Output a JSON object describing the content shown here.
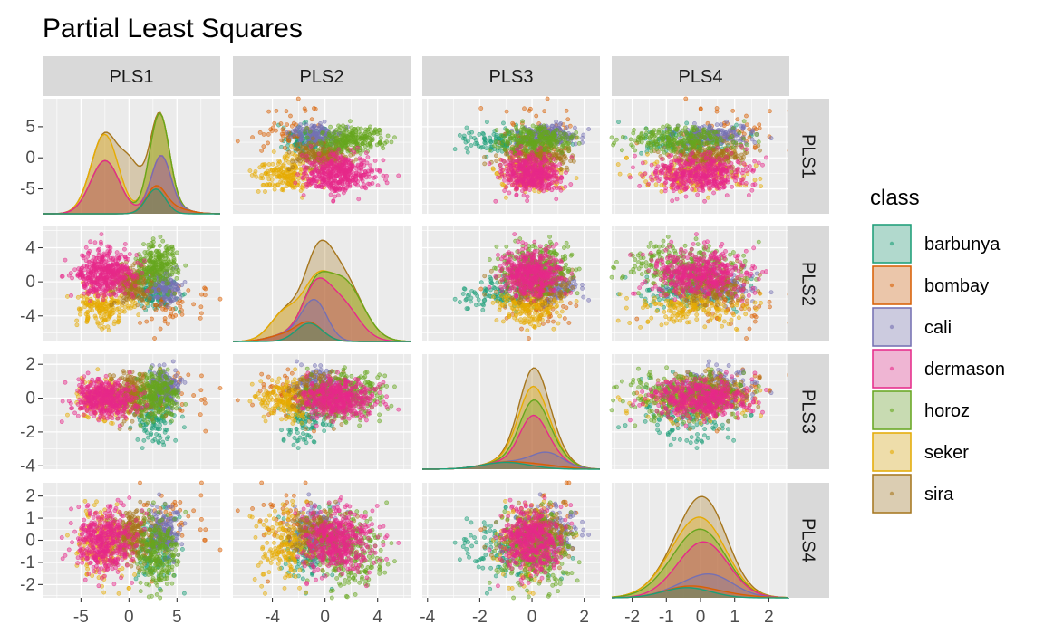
{
  "chart_data": {
    "type": "scatter",
    "title": "Partial Least Squares",
    "variables": [
      "PLS1",
      "PLS2",
      "PLS3",
      "PLS4"
    ],
    "axes": {
      "PLS1": {
        "range": [
          -9,
          9.5
        ],
        "ticks": [
          -5,
          0,
          5
        ]
      },
      "PLS2": {
        "range": [
          -7,
          6.5
        ],
        "ticks": [
          -4,
          0,
          4
        ]
      },
      "PLS3": {
        "range": [
          -4.2,
          2.6
        ],
        "ticks": [
          -4,
          -2,
          0,
          2
        ]
      },
      "PLS4": {
        "range": [
          -2.6,
          2.6
        ],
        "ticks": [
          -2,
          -1,
          0,
          1,
          2
        ]
      }
    },
    "diagonal": "density (stacked by class)",
    "off_diagonal": "scatter",
    "legend": {
      "title": "class",
      "position": "right"
    },
    "series": [
      {
        "name": "barbunya",
        "color": "#1b9e77",
        "n": 130,
        "mean": {
          "PLS1": 2.8,
          "PLS2": -1.2,
          "PLS3": -1.0,
          "PLS4": -0.4
        },
        "sd": {
          "PLS1": 1.0,
          "PLS2": 1.0,
          "PLS3": 0.9,
          "PLS4": 0.7
        }
      },
      {
        "name": "bombay",
        "color": "#d95f02",
        "n": 50,
        "mean": {
          "PLS1": 4.5,
          "PLS2": -3.2,
          "PLS3": 0.5,
          "PLS4": 0.6
        },
        "sd": {
          "PLS1": 1.6,
          "PLS2": 1.2,
          "PLS3": 0.8,
          "PLS4": 0.8
        }
      },
      {
        "name": "cali",
        "color": "#7570b3",
        "n": 160,
        "mean": {
          "PLS1": 3.6,
          "PLS2": -0.6,
          "PLS3": 0.6,
          "PLS4": 0.4
        },
        "sd": {
          "PLS1": 0.9,
          "PLS2": 0.9,
          "PLS3": 0.6,
          "PLS4": 0.6
        }
      },
      {
        "name": "dermason",
        "color": "#e7298a",
        "n": 420,
        "mean": {
          "PLS1": -2.5,
          "PLS2": 1.0,
          "PLS3": 0.0,
          "PLS4": 0.0
        },
        "sd": {
          "PLS1": 1.5,
          "PLS2": 1.4,
          "PLS3": 0.5,
          "PLS4": 0.7
        }
      },
      {
        "name": "horoz",
        "color": "#66a61e",
        "n": 230,
        "mean": {
          "PLS1": 3.0,
          "PLS2": 2.0,
          "PLS3": 0.2,
          "PLS4": -0.5
        },
        "sd": {
          "PLS1": 1.0,
          "PLS2": 1.4,
          "PLS3": 0.7,
          "PLS4": 0.8
        }
      },
      {
        "name": "seker",
        "color": "#e6ab02",
        "n": 180,
        "mean": {
          "PLS1": -2.6,
          "PLS2": -3.0,
          "PLS3": -0.1,
          "PLS4": -0.2
        },
        "sd": {
          "PLS1": 1.3,
          "PLS2": 1.1,
          "PLS3": 0.6,
          "PLS4": 0.8
        }
      },
      {
        "name": "sira",
        "color": "#a6761d",
        "n": 240,
        "mean": {
          "PLS1": 0.2,
          "PLS2": -0.2,
          "PLS3": 0.2,
          "PLS4": 0.2
        },
        "sd": {
          "PLS1": 1.1,
          "PLS2": 1.1,
          "PLS3": 0.6,
          "PLS4": 0.6
        }
      }
    ]
  }
}
